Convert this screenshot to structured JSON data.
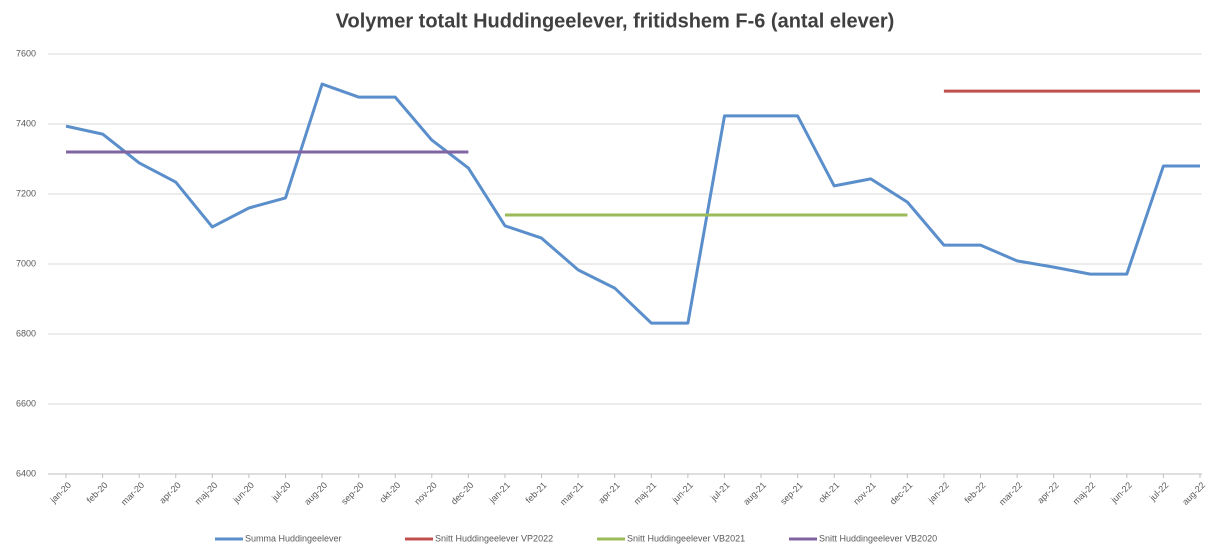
{
  "chart_data": {
    "type": "line",
    "title": "Volymer totalt Huddingeelever, fritidshem F-6 (antal elever)",
    "categories": [
      "jan-20",
      "feb-20",
      "mar-20",
      "apr-20",
      "maj-20",
      "jun-20",
      "jul-20",
      "aug-20",
      "sep-20",
      "okt-20",
      "nov-20",
      "dec-20",
      "jan-21",
      "feb-21",
      "mar-21",
      "apr-21",
      "maj-21",
      "jun-21",
      "jul-21",
      "aug-21",
      "sep-21",
      "okt-21",
      "nov-21",
      "dec-21",
      "jan-22",
      "feb-22",
      "mar-22",
      "apr-22",
      "maj-22",
      "jun-22",
      "jul-22",
      "aug-22"
    ],
    "series": [
      {
        "name": "Summa Huddingeelever",
        "color": "#5b8fcb",
        "values": [
          7394,
          7371,
          7289,
          7234,
          7106,
          7160,
          7189,
          7514,
          7477,
          7477,
          7354,
          7274,
          7109,
          7074,
          6983,
          6931,
          6831,
          6831,
          7423,
          7423,
          7423,
          7223,
          7243,
          7177,
          7054,
          7054,
          7009,
          6991,
          6971,
          6971,
          7280,
          7280
        ]
      },
      {
        "name": "Snitt Huddingeelever VP2022",
        "color": "#c0504d",
        "values": [
          null,
          null,
          null,
          null,
          null,
          null,
          null,
          null,
          null,
          null,
          null,
          null,
          null,
          null,
          null,
          null,
          null,
          null,
          null,
          null,
          null,
          null,
          null,
          null,
          7494,
          7494,
          7494,
          7494,
          7494,
          7494,
          7494,
          7494
        ]
      },
      {
        "name": "Snitt  Huddingeelever VB2021",
        "color": "#9bbb59",
        "values": [
          null,
          null,
          null,
          null,
          null,
          null,
          null,
          null,
          null,
          null,
          null,
          null,
          7140,
          7140,
          7140,
          7140,
          7140,
          7140,
          7140,
          7140,
          7140,
          7140,
          7140,
          7140,
          null,
          null,
          null,
          null,
          null,
          null,
          null,
          null
        ]
      },
      {
        "name": "Snitt Huddingeelever VB2020",
        "color": "#8064a2",
        "values": [
          7320,
          7320,
          7320,
          7320,
          7320,
          7320,
          7320,
          7320,
          7320,
          7320,
          7320,
          7320,
          null,
          null,
          null,
          null,
          null,
          null,
          null,
          null,
          null,
          null,
          null,
          null,
          null,
          null,
          null,
          null,
          null,
          null,
          null,
          null
        ]
      }
    ],
    "ylim": [
      6400,
      7600
    ],
    "yticks": [
      6400,
      6600,
      6800,
      7000,
      7200,
      7400,
      7600
    ],
    "grid": true
  }
}
